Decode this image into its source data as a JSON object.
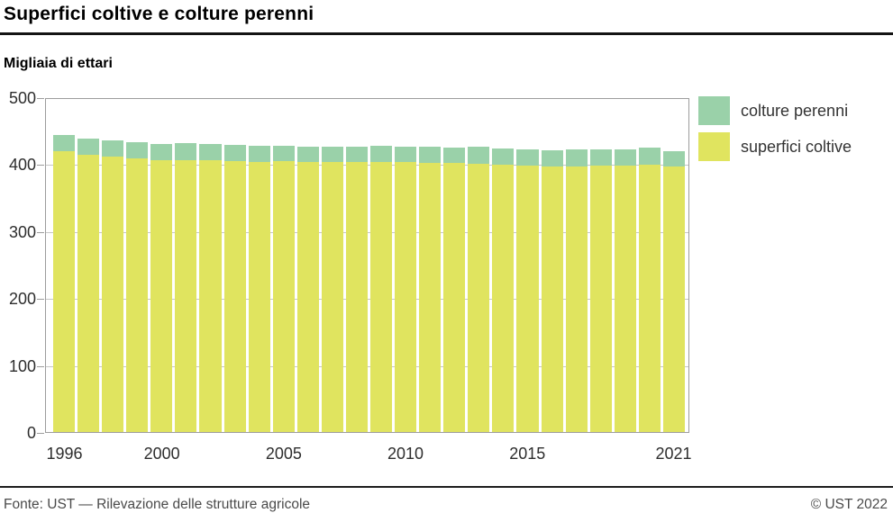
{
  "header": {
    "title": "Superfici coltive e colture perenni",
    "subtitle": "Migliaia di ettari"
  },
  "legend": {
    "items": [
      {
        "label": "colture perenni",
        "color": "#9ad1a9"
      },
      {
        "label": "superfici coltive",
        "color": "#e0e45f"
      }
    ]
  },
  "footer": {
    "source": "Fonte: UST — Rilevazione delle strutture agricole",
    "copyright": "© UST 2022"
  },
  "chart_data": {
    "type": "bar",
    "stacked": true,
    "title": "Superfici coltive e colture perenni",
    "ylabel": "Migliaia di ettari",
    "ylim": [
      0,
      500
    ],
    "yticks": [
      0,
      100,
      200,
      300,
      400,
      500
    ],
    "grid": true,
    "legend_position": "right",
    "categories": [
      1996,
      1997,
      1998,
      1999,
      2000,
      2001,
      2002,
      2003,
      2004,
      2005,
      2006,
      2007,
      2008,
      2009,
      2010,
      2011,
      2012,
      2013,
      2014,
      2015,
      2016,
      2017,
      2018,
      2019,
      2020,
      2021
    ],
    "series": [
      {
        "name": "superfici coltive",
        "color": "#e0e45f",
        "values": [
          421,
          416,
          414,
          411,
          408,
          408,
          408,
          407,
          406,
          407,
          406,
          406,
          405,
          406,
          405,
          404,
          404,
          403,
          402,
          400,
          399,
          399,
          400,
          400,
          402,
          398
        ]
      },
      {
        "name": "colture perenni",
        "color": "#9ad1a9",
        "values": [
          25,
          24,
          24,
          24,
          25,
          26,
          25,
          24,
          24,
          23,
          23,
          23,
          23,
          24,
          24,
          25,
          23,
          26,
          24,
          25,
          24,
          25,
          24,
          24,
          25,
          23
        ]
      }
    ],
    "xticks": [
      {
        "label": "1996",
        "index": 0
      },
      {
        "label": "2000",
        "index": 4
      },
      {
        "label": "2005",
        "index": 9
      },
      {
        "label": "2010",
        "index": 14
      },
      {
        "label": "2015",
        "index": 19
      },
      {
        "label": "2021",
        "index": 25
      }
    ]
  }
}
